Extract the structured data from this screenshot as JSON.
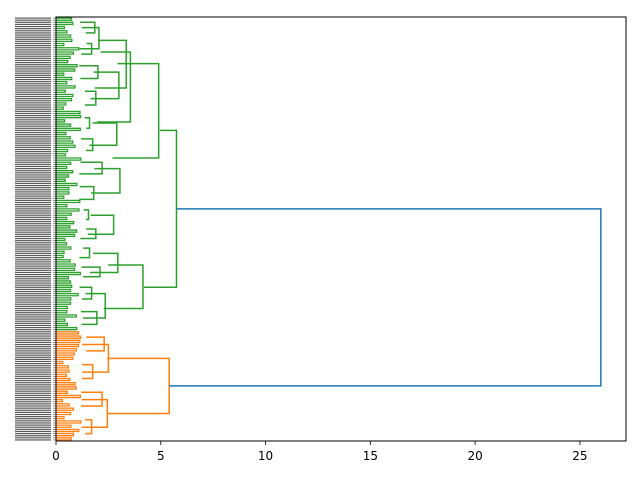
{
  "chart_data": {
    "type": "dendrogram",
    "orientation": "right",
    "title": "",
    "xlabel": "",
    "ylabel": "",
    "xlim": [
      0,
      27.2
    ],
    "x_ticks": [
      0,
      5,
      10,
      15,
      20,
      25
    ],
    "x_tick_labels": [
      "0",
      "5",
      "10",
      "15",
      "20",
      "25"
    ],
    "leaf_count": 200,
    "colors": {
      "cluster_green": "#2ca02c",
      "cluster_orange": "#ff7f0e",
      "link_above_threshold": "#1f77b4"
    },
    "clusters": [
      {
        "color": "cluster_green",
        "leaf_range": [
          0,
          148
        ],
        "merge_height": 5.75,
        "subclusters": [
          {
            "leaf_range": [
              0,
              107
            ],
            "merge_height": 4.95
          },
          {
            "leaf_range": [
              107,
              148
            ],
            "merge_height": 4.2
          }
        ]
      },
      {
        "color": "cluster_orange",
        "leaf_range": [
          148,
          200
        ],
        "merge_height": 5.4,
        "subclusters": [
          {
            "leaf_range": [
              148,
              174
            ],
            "merge_height": 2.5
          },
          {
            "leaf_range": [
              174,
              200
            ],
            "merge_height": 2.45
          }
        ]
      }
    ],
    "root": {
      "merge_height": 26.0,
      "color": "link_above_threshold"
    },
    "green_links": [
      [
        0,
        20,
        2.05
      ],
      [
        20,
        45,
        3.0
      ],
      [
        0,
        45,
        3.35
      ],
      [
        45,
        66,
        2.9
      ],
      [
        0,
        66,
        3.55
      ],
      [
        66,
        89,
        3.05
      ],
      [
        0,
        89,
        4.9
      ],
      [
        89,
        107,
        2.75
      ],
      [
        107,
        125,
        2.95
      ],
      [
        125,
        148,
        2.35
      ],
      [
        107,
        148,
        4.15
      ],
      [
        0,
        10,
        1.85
      ],
      [
        10,
        20,
        1.7
      ],
      [
        20,
        32,
        2.0
      ],
      [
        32,
        45,
        1.9
      ],
      [
        45,
        55,
        1.6
      ],
      [
        55,
        66,
        1.75
      ],
      [
        66,
        77,
        2.2
      ],
      [
        77,
        89,
        1.8
      ],
      [
        89,
        98,
        1.55
      ],
      [
        98,
        107,
        1.9
      ],
      [
        107,
        116,
        1.6
      ],
      [
        116,
        125,
        2.1
      ],
      [
        125,
        136,
        1.7
      ],
      [
        136,
        148,
        1.95
      ]
    ],
    "orange_links": [
      [
        148,
        161,
        2.3
      ],
      [
        161,
        174,
        1.75
      ],
      [
        148,
        174,
        2.5
      ],
      [
        174,
        187,
        2.2
      ],
      [
        187,
        200,
        1.7
      ],
      [
        174,
        200,
        2.45
      ],
      [
        148,
        200,
        5.4
      ]
    ]
  }
}
